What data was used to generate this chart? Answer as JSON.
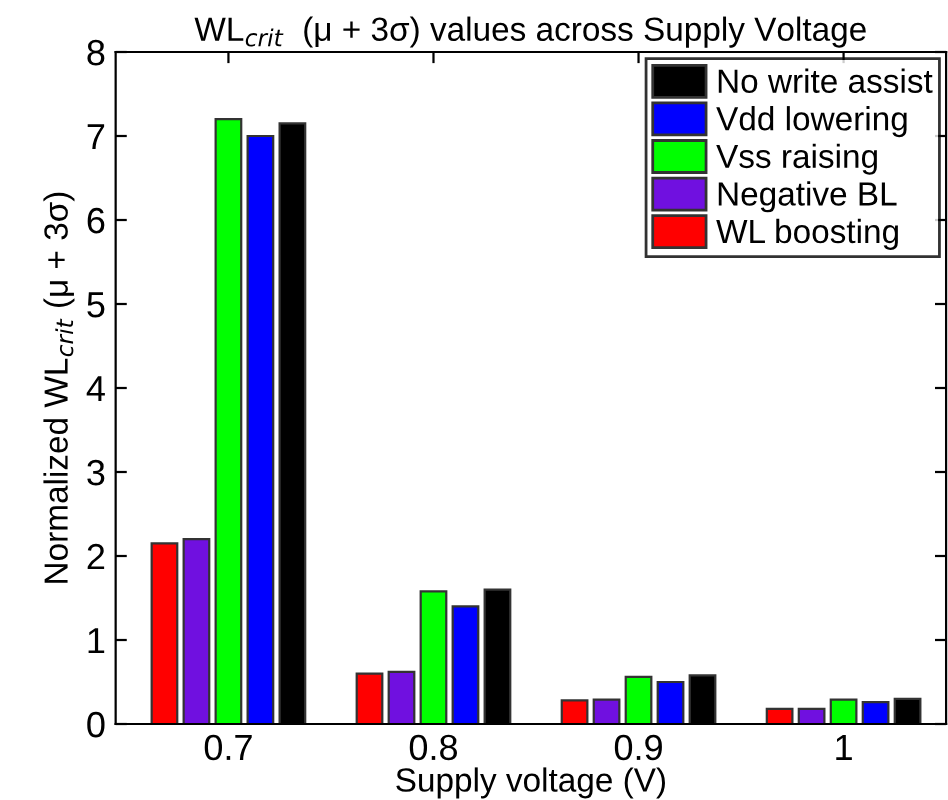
{
  "chart_data": {
    "type": "bar",
    "title": "WL$_{crit}$  (μ + 3σ) values across Supply Voltage",
    "xlabel": "Supply voltage (V)",
    "ylabel": "Normalized WL$_{crit}$ (μ + 3σ)",
    "categories": [
      "0.7",
      "0.8",
      "0.9",
      "1"
    ],
    "series": [
      {
        "name": "WL boosting",
        "color": "#ff0000",
        "values": [
          2.15,
          0.6,
          0.28,
          0.18
        ]
      },
      {
        "name": "Negative BL",
        "color": "#7010e0",
        "values": [
          2.2,
          0.62,
          0.29,
          0.18
        ]
      },
      {
        "name": "Vss raising",
        "color": "#00ff00",
        "values": [
          7.2,
          1.58,
          0.56,
          0.29
        ]
      },
      {
        "name": "Vdd lowering",
        "color": "#0000ff",
        "values": [
          7.0,
          1.4,
          0.5,
          0.26
        ]
      },
      {
        "name": "No write assist",
        "color": "#000000",
        "values": [
          7.15,
          1.6,
          0.58,
          0.3
        ]
      }
    ],
    "ylim": [
      0,
      8
    ],
    "yticks": [
      0,
      1,
      2,
      3,
      4,
      5,
      6,
      7,
      8
    ],
    "grid": false,
    "legend": "top right"
  }
}
